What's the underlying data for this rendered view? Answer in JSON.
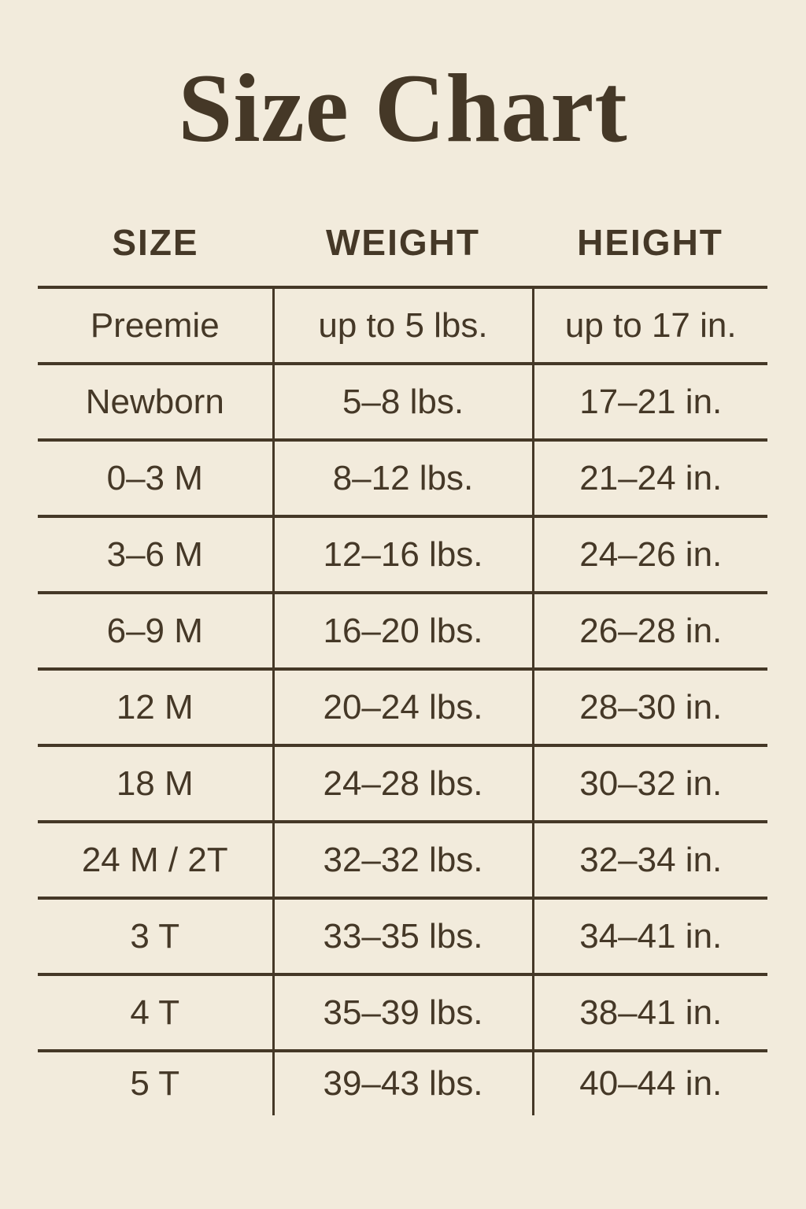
{
  "title": "Size Chart",
  "colors": {
    "background": "#f2ebdc",
    "text": "#453827",
    "line": "#453827"
  },
  "chart_data": {
    "type": "table",
    "title": "Size Chart",
    "columns": [
      "SIZE",
      "WEIGHT",
      "HEIGHT"
    ],
    "rows": [
      [
        "Preemie",
        "up to 5 lbs.",
        "up to 17 in."
      ],
      [
        "Newborn",
        "5–8 lbs.",
        "17–21 in."
      ],
      [
        "0–3 M",
        "8–12 lbs.",
        "21–24 in."
      ],
      [
        "3–6 M",
        "12–16 lbs.",
        "24–26 in."
      ],
      [
        "6–9 M",
        "16–20 lbs.",
        "26–28 in."
      ],
      [
        "12 M",
        "20–24 lbs.",
        "28–30 in."
      ],
      [
        "18 M",
        "24–28 lbs.",
        "30–32 in."
      ],
      [
        "24 M / 2T",
        "32–32 lbs.",
        "32–34 in."
      ],
      [
        "3 T",
        "33–35 lbs.",
        "34–41 in."
      ],
      [
        "4 T",
        "35–39 lbs.",
        "38–41 in."
      ],
      [
        "5 T",
        "39–43 lbs.",
        "40–44 in."
      ]
    ],
    "layout": {
      "grid": "horizontal rules between rows, vertical rules between columns, no outer border, no bottom rule",
      "alignment": "all cells centered"
    }
  }
}
